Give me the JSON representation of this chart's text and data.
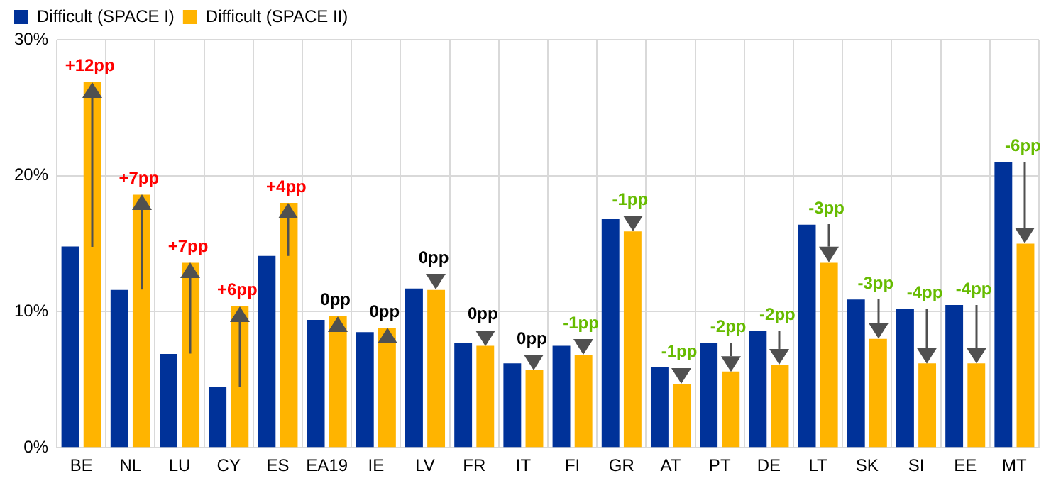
{
  "chart_data": {
    "type": "bar",
    "categories": [
      "BE",
      "NL",
      "LU",
      "CY",
      "ES",
      "EA19",
      "IE",
      "LV",
      "FR",
      "IT",
      "FI",
      "GR",
      "AT",
      "PT",
      "DE",
      "LT",
      "SK",
      "SI",
      "EE",
      "MT"
    ],
    "series": [
      {
        "name": "Difficult (SPACE I)",
        "color": "#003299",
        "values": [
          14.8,
          11.6,
          6.9,
          4.5,
          14.1,
          9.4,
          8.5,
          11.7,
          7.7,
          6.2,
          7.5,
          16.8,
          5.9,
          7.7,
          8.6,
          16.4,
          10.9,
          10.2,
          10.5,
          21.0
        ]
      },
      {
        "name": "Difficult (SPACE II)",
        "color": "#ffb400",
        "values": [
          26.9,
          18.6,
          13.6,
          10.4,
          18.0,
          9.7,
          8.8,
          11.6,
          7.5,
          5.7,
          6.8,
          15.9,
          4.7,
          5.6,
          6.1,
          13.6,
          8.0,
          6.2,
          6.2,
          15.0
        ]
      }
    ],
    "annotations": [
      {
        "text": "+12pp",
        "x": "BE",
        "y": 26.9
      },
      {
        "text": "+7pp",
        "x": "NL",
        "y": 18.6
      },
      {
        "text": "+7pp",
        "x": "LU",
        "y": 13.6
      },
      {
        "text": "+6pp",
        "x": "CY",
        "y": 10.4
      },
      {
        "text": "+4pp",
        "x": "ES",
        "y": 18.0
      },
      {
        "text": "0pp",
        "x": "EA19",
        "y": 9.7
      },
      {
        "text": "0pp",
        "x": "IE",
        "y": 8.8
      },
      {
        "text": "0pp",
        "x": "LV",
        "y": 11.7
      },
      {
        "text": "0pp",
        "x": "FR",
        "y": 7.7
      },
      {
        "text": "0pp",
        "x": "IT",
        "y": 6.2
      },
      {
        "text": "-1pp",
        "x": "FI",
        "y": 7.5
      },
      {
        "text": "-1pp",
        "x": "GR",
        "y": 16.8
      },
      {
        "text": "-1pp",
        "x": "AT",
        "y": 5.9
      },
      {
        "text": "-2pp",
        "x": "PT",
        "y": 7.7
      },
      {
        "text": "-2pp",
        "x": "DE",
        "y": 8.6
      },
      {
        "text": "-3pp",
        "x": "LT",
        "y": 16.4
      },
      {
        "text": "-3pp",
        "x": "SK",
        "y": 10.9
      },
      {
        "text": "-4pp",
        "x": "SI",
        "y": 10.2
      },
      {
        "text": "-4pp",
        "x": "EE",
        "y": 10.5
      },
      {
        "text": "-6pp",
        "x": "MT",
        "y": 21.0
      }
    ],
    "ylim": [
      0,
      30
    ],
    "yticks": [
      {
        "value": 0,
        "label": "0%"
      },
      {
        "value": 10,
        "label": "10%"
      },
      {
        "value": 20,
        "label": "20%"
      },
      {
        "value": 30,
        "label": "30%"
      }
    ],
    "grid": true,
    "legend": "top left"
  }
}
